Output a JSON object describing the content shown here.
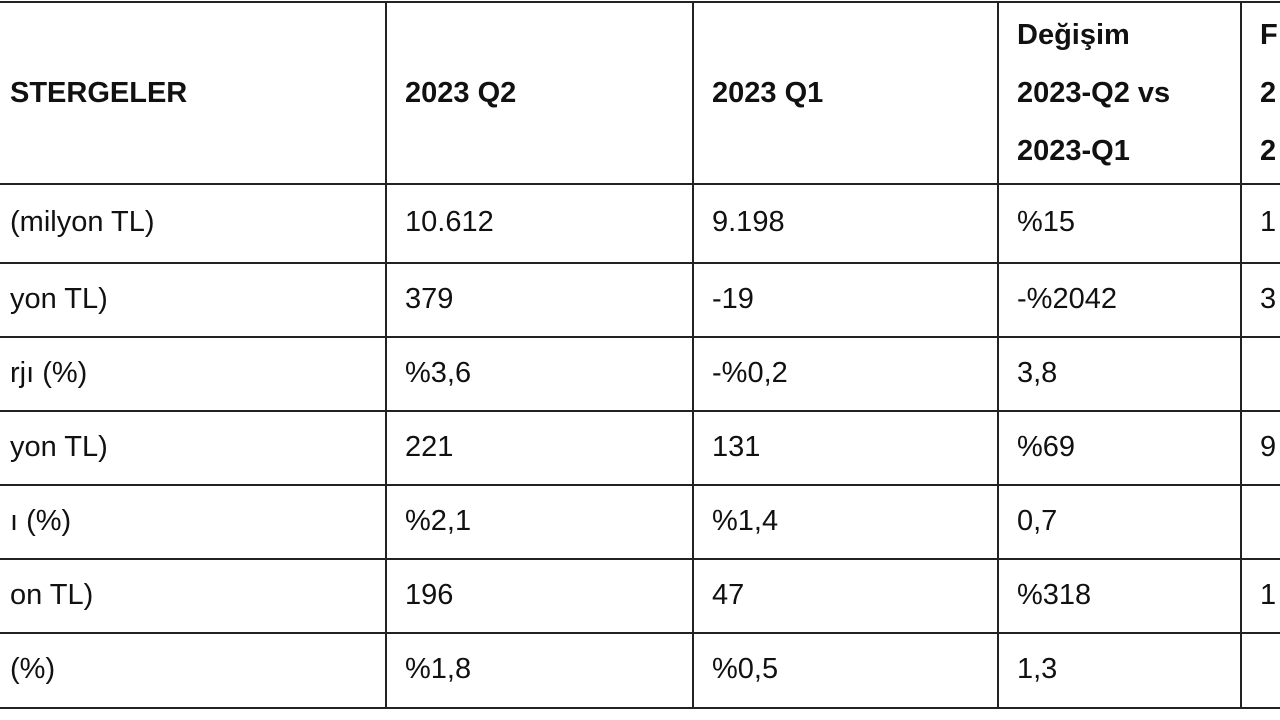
{
  "table": {
    "header": [
      [
        "STERGELER"
      ],
      [
        "2023 Q2"
      ],
      [
        "2023 Q1"
      ],
      [
        "Değişim",
        "2023-Q2 vs",
        "2023-Q1"
      ],
      [
        "F",
        "2",
        "2"
      ]
    ],
    "rows": [
      [
        "(milyon TL)",
        "10.612",
        "9.198",
        "%15",
        "1"
      ],
      [
        "yon TL)",
        "379",
        "-19",
        "-%2042",
        "3"
      ],
      [
        "rjı (%)",
        "%3,6",
        "-%0,2",
        "3,8"
      ],
      [
        "yon TL)",
        "221",
        "131",
        "%69",
        "9"
      ],
      [
        "ı (%)",
        "%2,1",
        "%1,4",
        "0,7"
      ],
      [
        "on TL)",
        "196",
        "47",
        "%318",
        "1"
      ],
      [
        "(%)",
        "%1,8",
        "%0,5",
        "1,3"
      ]
    ]
  }
}
